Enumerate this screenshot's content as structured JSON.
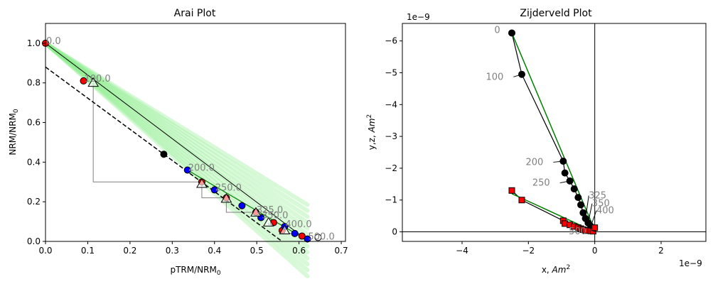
{
  "chart_data": [
    {
      "type": "scatter",
      "title": "Arai Plot",
      "xlabel": "pTRM/NRM",
      "xlabel_sub": "0",
      "ylabel": "NRM/NRM",
      "ylabel_sub": "0",
      "xlim": [
        0,
        0.71
      ],
      "ylim": [
        0,
        1.1
      ],
      "xticks": [
        "0.0",
        "0.1",
        "0.2",
        "0.3",
        "0.4",
        "0.5",
        "0.6",
        "0.7"
      ],
      "yticks": [
        "0.0",
        "0.2",
        "0.4",
        "0.6",
        "0.8",
        "1.0"
      ],
      "colors": {
        "red": "#ff0000",
        "blue": "#0000ff",
        "black": "#000000",
        "green": "#008000",
        "band": "#90ee90",
        "gray": "#808080"
      },
      "points": [
        {
          "x": 0.0,
          "y": 1.0,
          "color": "red"
        },
        {
          "x": 0.09,
          "y": 0.81,
          "color": "red"
        },
        {
          "x": 0.28,
          "y": 0.44,
          "color": "black"
        },
        {
          "x": 0.336,
          "y": 0.36,
          "color": "blue"
        },
        {
          "x": 0.37,
          "y": 0.3,
          "color": "red"
        },
        {
          "x": 0.4,
          "y": 0.26,
          "color": "blue"
        },
        {
          "x": 0.428,
          "y": 0.22,
          "color": "red"
        },
        {
          "x": 0.465,
          "y": 0.18,
          "color": "blue"
        },
        {
          "x": 0.498,
          "y": 0.147,
          "color": "red"
        },
        {
          "x": 0.51,
          "y": 0.12,
          "color": "blue"
        },
        {
          "x": 0.54,
          "y": 0.095,
          "color": "red"
        },
        {
          "x": 0.56,
          "y": 0.055,
          "color": "red"
        },
        {
          "x": 0.566,
          "y": 0.075,
          "color": "blue"
        },
        {
          "x": 0.59,
          "y": 0.04,
          "color": "blue"
        },
        {
          "x": 0.607,
          "y": 0.027,
          "color": "red"
        },
        {
          "x": 0.62,
          "y": 0.012,
          "color": "blue"
        },
        {
          "x": 0.645,
          "y": 0.02,
          "color": "white"
        }
      ],
      "triangles": [
        {
          "x": 0.113,
          "y": 0.8
        },
        {
          "x": 0.37,
          "y": 0.29
        },
        {
          "x": 0.428,
          "y": 0.215
        },
        {
          "x": 0.498,
          "y": 0.145
        },
        {
          "x": 0.528,
          "y": 0.095
        },
        {
          "x": 0.566,
          "y": 0.055
        }
      ],
      "ptrm_checks": [
        [
          [
            0.113,
            0.8
          ],
          [
            0.113,
            0.3
          ],
          [
            0.37,
            0.3
          ],
          [
            0.37,
            0.29
          ]
        ],
        [
          [
            0.37,
            0.29
          ],
          [
            0.37,
            0.22
          ],
          [
            0.428,
            0.22
          ],
          [
            0.428,
            0.215
          ]
        ],
        [
          [
            0.428,
            0.215
          ],
          [
            0.428,
            0.147
          ],
          [
            0.498,
            0.147
          ],
          [
            0.498,
            0.145
          ]
        ],
        [
          [
            0.528,
            0.095
          ],
          [
            0.528,
            0.085
          ],
          [
            0.54,
            0.085
          ]
        ],
        [
          [
            0.566,
            0.055
          ],
          [
            0.566,
            0.04
          ],
          [
            0.59,
            0.04
          ]
        ]
      ],
      "fit_line": [
        [
          0.0,
          1.0
        ],
        [
          0.62,
          0.005
        ]
      ],
      "dashed_line": [
        [
          0.0,
          0.88
        ],
        [
          0.56,
          0.0
        ]
      ],
      "green_segment": [
        [
          0.336,
          0.36
        ],
        [
          0.62,
          0.005
        ]
      ],
      "step_labels": [
        {
          "x": 0.0,
          "y": 1.0,
          "text": "0.0"
        },
        {
          "x": 0.09,
          "y": 0.81,
          "text": "100.0"
        },
        {
          "x": 0.336,
          "y": 0.36,
          "text": "200.0"
        },
        {
          "x": 0.4,
          "y": 0.26,
          "text": "250.0"
        },
        {
          "x": 0.498,
          "y": 0.147,
          "text": "325.0"
        },
        {
          "x": 0.51,
          "y": 0.12,
          "text": "350.0"
        },
        {
          "x": 0.566,
          "y": 0.075,
          "text": "400.0"
        },
        {
          "x": 0.62,
          "y": 0.012,
          "text": "500.0"
        }
      ]
    },
    {
      "type": "scatter",
      "title": "Zijderveld Plot",
      "xlabel": "x, ",
      "xlabel_unit": "Am",
      "ylabel": "y,z, ",
      "ylabel_unit": "Am",
      "unit_sup": "2",
      "offset_label": "1e−9",
      "xlim": [
        -5.8,
        3.35
      ],
      "ylim": [
        -6.55,
        0.3
      ],
      "y_inverted": true,
      "xticks": [
        {
          "v": -4,
          "text": "−4"
        },
        {
          "v": -2,
          "text": "−2"
        },
        {
          "v": 0,
          "text": "0"
        },
        {
          "v": 2,
          "text": "2"
        }
      ],
      "yticks": [
        {
          "v": 0,
          "text": "0"
        },
        {
          "v": -1,
          "text": "−1"
        },
        {
          "v": -2,
          "text": "−2"
        },
        {
          "v": -3,
          "text": "−3"
        },
        {
          "v": -4,
          "text": "−4"
        },
        {
          "v": -5,
          "text": "−5"
        },
        {
          "v": -6,
          "text": "−6"
        }
      ],
      "horizontal": [
        {
          "x": -2.5,
          "y": -6.25
        },
        {
          "x": -2.2,
          "y": -4.95
        },
        {
          "x": -0.95,
          "y": -2.22
        },
        {
          "x": -0.9,
          "y": -1.85
        },
        {
          "x": -0.75,
          "y": -1.6
        },
        {
          "x": -0.62,
          "y": -1.35
        },
        {
          "x": -0.5,
          "y": -1.08
        },
        {
          "x": -0.42,
          "y": -0.85
        },
        {
          "x": -0.35,
          "y": -0.6
        },
        {
          "x": -0.28,
          "y": -0.42
        },
        {
          "x": -0.2,
          "y": -0.28
        },
        {
          "x": -0.12,
          "y": -0.18
        },
        {
          "x": -0.05,
          "y": -0.1
        }
      ],
      "vertical": [
        {
          "x": -2.5,
          "y": -1.3
        },
        {
          "x": -2.2,
          "y": -1.0
        },
        {
          "x": -0.95,
          "y": -0.35
        },
        {
          "x": -0.9,
          "y": -0.26
        },
        {
          "x": -0.75,
          "y": -0.22
        },
        {
          "x": -0.62,
          "y": -0.17
        },
        {
          "x": -0.5,
          "y": -0.13
        },
        {
          "x": -0.42,
          "y": -0.1
        },
        {
          "x": -0.35,
          "y": -0.07
        },
        {
          "x": -0.28,
          "y": -0.05
        },
        {
          "x": -0.2,
          "y": -0.04
        },
        {
          "x": -0.12,
          "y": -0.03
        },
        {
          "x": -0.05,
          "y": -0.02
        },
        {
          "x": 0.0,
          "y": -0.13
        }
      ],
      "green_fit_h": [
        [
          -2.5,
          -6.25
        ],
        [
          0.0,
          -0.05
        ]
      ],
      "green_fit_v": [
        [
          -2.5,
          -1.2
        ],
        [
          0.0,
          0.0
        ]
      ],
      "step_labels": [
        {
          "x": -2.5,
          "y": -6.25,
          "text": "0",
          "lx": -2.85,
          "ly": -6.25
        },
        {
          "x": -2.2,
          "y": -4.95,
          "text": "100",
          "lx": -2.75,
          "ly": -4.78
        },
        {
          "x": -0.95,
          "y": -2.22,
          "text": "200",
          "lx": -1.55,
          "ly": -2.1
        },
        {
          "x": -0.75,
          "y": -1.6,
          "text": "250",
          "lx": -1.35,
          "ly": -1.45
        },
        {
          "x": -0.28,
          "y": -0.42,
          "text": "325",
          "lx": -0.18,
          "ly": -1.05
        },
        {
          "x": -0.2,
          "y": -0.28,
          "text": "350",
          "lx": -0.08,
          "ly": -0.8
        },
        {
          "x": -0.12,
          "y": -0.18,
          "text": "400",
          "lx": 0.05,
          "ly": -0.58
        },
        {
          "x": -0.05,
          "y": -0.02,
          "text": "500",
          "lx": -0.25,
          "ly": 0.08
        }
      ]
    }
  ]
}
